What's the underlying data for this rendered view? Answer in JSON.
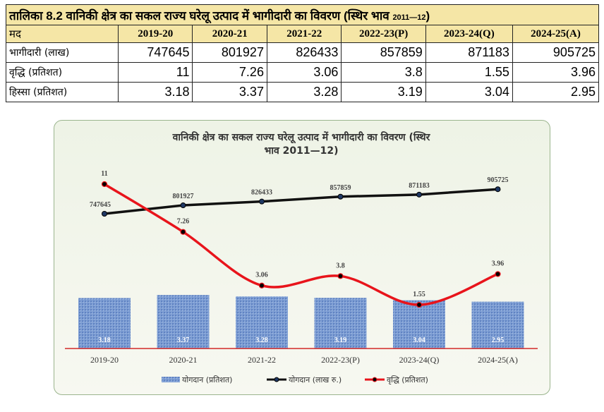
{
  "table": {
    "title": "तालिका 8.2 वानिकी क्षेत्र का सकल राज्य घरेलू उत्पाद में भागीदारी का विवरण (स्थिर भाव",
    "title_years": "2011—12",
    "title_close": ")",
    "header_label": "मद",
    "years": [
      "2019-20",
      "2020-21",
      "2021-22",
      "2022-23(P)",
      "2023-24(Q)",
      "2024-25(A)"
    ],
    "rows": [
      {
        "label": "भागीदारी (लाख)",
        "values": [
          "747645",
          "801927",
          "826433",
          "857859",
          "871183",
          "905725"
        ]
      },
      {
        "label": "वृद्धि (प्रतिशत)",
        "values": [
          "11",
          "7.26",
          "3.06",
          "3.8",
          "1.55",
          "3.96"
        ]
      },
      {
        "label": "हिस्सा (प्रतिशत)",
        "values": [
          "3.18",
          "3.37",
          "3.28",
          "3.19",
          "3.04",
          "2.95"
        ]
      }
    ]
  },
  "chart_data": {
    "type": "bar",
    "title": "वानिकी क्षेत्र का सकल राज्य घरेलू उत्पाद में भागीदारी का विवरण (स्थिर",
    "title_line2": "भाव 2011—12)",
    "categories": [
      "2019-20",
      "2020-21",
      "2021-22",
      "2022-23(P)",
      "2023-24(Q)",
      "2024-25(A)"
    ],
    "series": [
      {
        "name": "योगदान (प्रतिशत)",
        "kind": "bar",
        "values": [
          3.18,
          3.37,
          3.28,
          3.19,
          3.04,
          2.95
        ],
        "color": "#7f9fd4"
      },
      {
        "name": "योगदान (लाख रु.)",
        "kind": "line",
        "values": [
          747645,
          801927,
          826433,
          857859,
          871183,
          905725
        ],
        "color": "#111111"
      },
      {
        "name": "वृद्धि (प्रतिशत)",
        "kind": "line",
        "values": [
          11,
          7.26,
          3.06,
          3.8,
          1.55,
          3.96
        ],
        "color": "#e8141b"
      }
    ],
    "legend_position": "bottom",
    "grid": false,
    "axis_color": "#cc0000"
  }
}
